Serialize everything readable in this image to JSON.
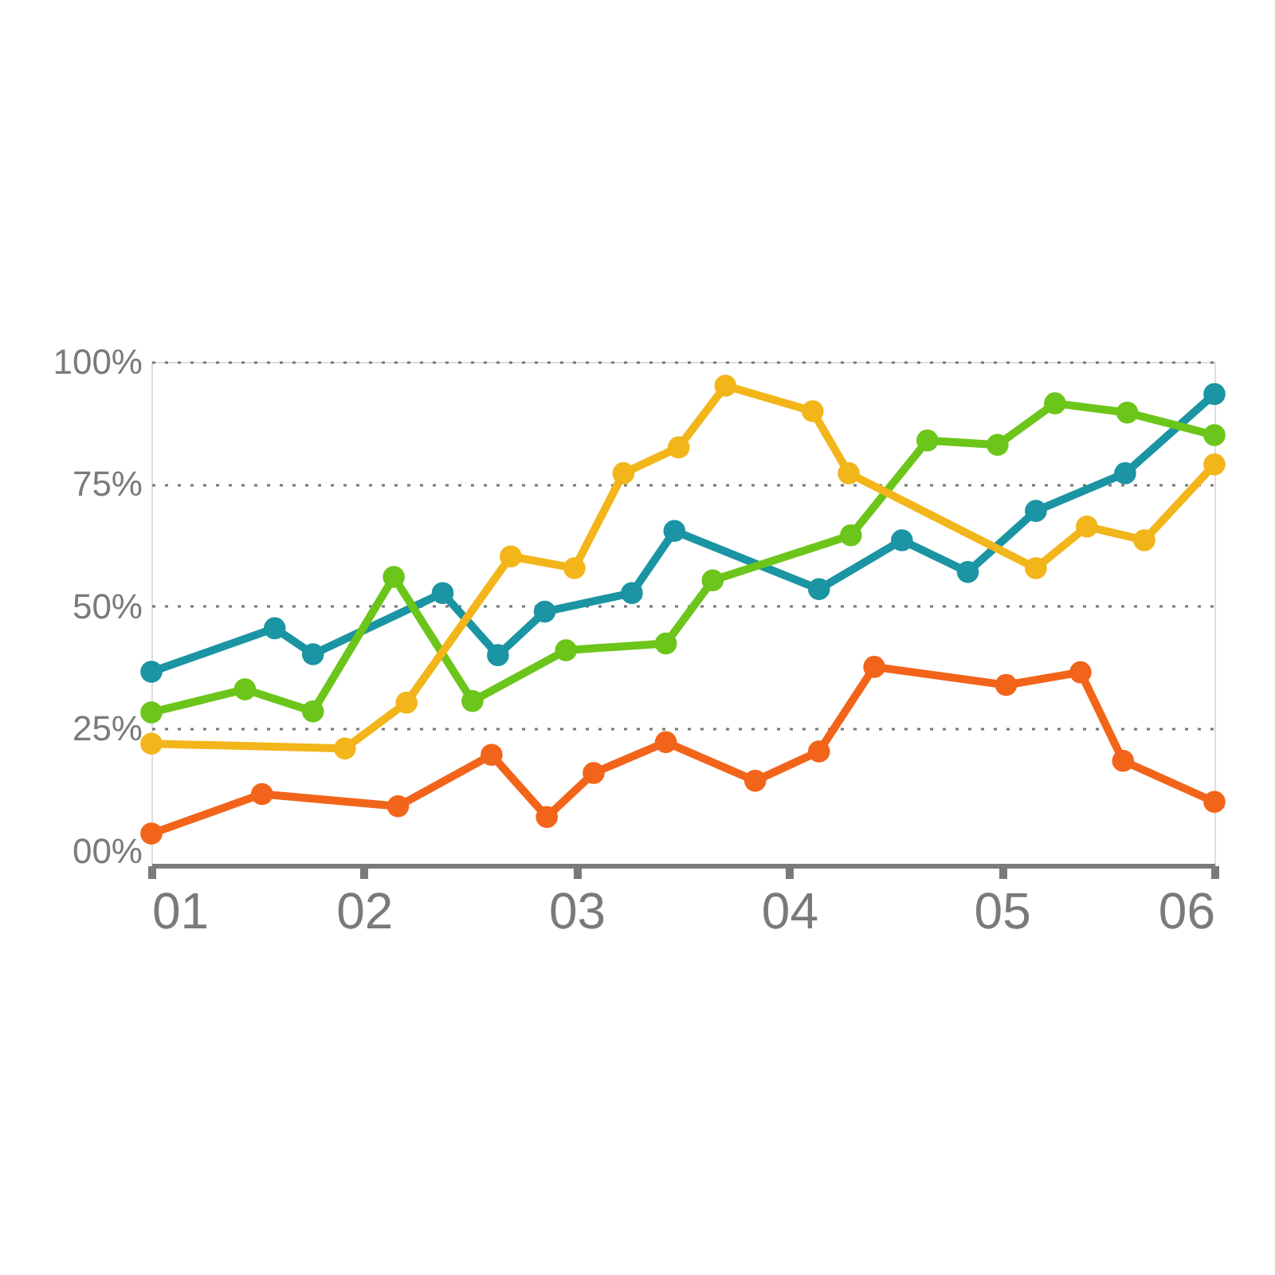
{
  "chart_data": {
    "type": "line",
    "xlim": [
      1,
      6
    ],
    "xticks": [
      {
        "value": 1,
        "label": "01"
      },
      {
        "value": 2,
        "label": "02"
      },
      {
        "value": 3,
        "label": "03"
      },
      {
        "value": 4,
        "label": "04"
      },
      {
        "value": 5,
        "label": "05"
      },
      {
        "value": 6,
        "label": "06"
      }
    ],
    "ylim": [
      -3,
      100
    ],
    "yticks": [
      {
        "value": 0,
        "label": "00%"
      },
      {
        "value": 25,
        "label": "25%"
      },
      {
        "value": 50,
        "label": "50%"
      },
      {
        "value": 75,
        "label": "75%"
      },
      {
        "value": 100,
        "label": "100%"
      }
    ],
    "grid": "y",
    "marker": "circle",
    "line_style": "solid",
    "legend": false,
    "series": [
      {
        "color": "#1b94a3",
        "x": [
          1,
          1.58,
          1.76,
          2.37,
          2.63,
          2.85,
          3.26,
          3.46,
          4.14,
          4.53,
          4.84,
          5.16,
          5.58,
          6
        ],
        "values": [
          36.6,
          45.5,
          40.2,
          52.7,
          40.0,
          48.9,
          52.7,
          65.4,
          53.5,
          63.5,
          57.0,
          69.5,
          77.2,
          93.4
        ]
      },
      {
        "color": "#6cc51a",
        "x": [
          1,
          1.44,
          1.76,
          2.14,
          2.51,
          2.95,
          3.42,
          3.64,
          4.29,
          4.65,
          4.98,
          5.25,
          5.59,
          6
        ],
        "values": [
          28.3,
          33.0,
          28.5,
          56.0,
          30.6,
          41.0,
          42.4,
          55.3,
          64.5,
          83.9,
          83.0,
          91.5,
          89.6,
          85.0
        ]
      },
      {
        "color": "#f2b51a",
        "x": [
          1,
          1.91,
          2.2,
          2.69,
          2.99,
          3.22,
          3.48,
          3.7,
          4.11,
          4.28,
          5.16,
          5.4,
          5.67,
          6
        ],
        "values": [
          21.9,
          20.9,
          30.3,
          60.2,
          57.8,
          77.2,
          82.5,
          95.1,
          89.9,
          77.2,
          57.8,
          66.3,
          63.5,
          79.0
        ]
      },
      {
        "color": "#f2641a",
        "x": [
          1,
          1.52,
          2.16,
          2.6,
          2.86,
          3.08,
          3.42,
          3.84,
          4.14,
          4.4,
          5.02,
          5.37,
          5.57,
          6
        ],
        "values": [
          3.5,
          11.6,
          9.1,
          19.6,
          6.9,
          15.9,
          22.2,
          14.3,
          20.3,
          37.6,
          33.9,
          36.5,
          18.4,
          10.0
        ]
      }
    ]
  }
}
